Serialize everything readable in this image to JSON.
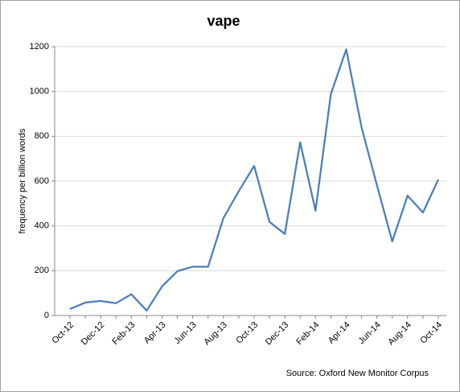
{
  "chart_data": {
    "type": "line",
    "title": "vape",
    "y_label": "frequency per billion words",
    "source": "Source: Oxford New Monitor Corpus",
    "categories": [
      "Oct-12",
      null,
      "Dec-12",
      null,
      "Feb-13",
      null,
      "Apr-13",
      null,
      "Jun-13",
      null,
      "Aug-13",
      null,
      "Oct-13",
      null,
      "Dec-13",
      null,
      "Feb-14",
      null,
      "Apr-14",
      null,
      "Jun-14",
      null,
      "Aug-14",
      null,
      "Oct-14"
    ],
    "series": [
      {
        "name": "vape",
        "color": "#4a7ebb",
        "values": [
          29,
          58,
          65,
          55,
          95,
          22,
          130,
          198,
          218,
          218,
          435,
          555,
          668,
          418,
          364,
          773,
          468,
          988,
          1188,
          840,
          582,
          331,
          535,
          460,
          607
        ]
      }
    ],
    "ylim": [
      0,
      1200
    ],
    "yticks": [
      0,
      200,
      400,
      600,
      800,
      1000,
      1200
    ],
    "grid": true
  }
}
